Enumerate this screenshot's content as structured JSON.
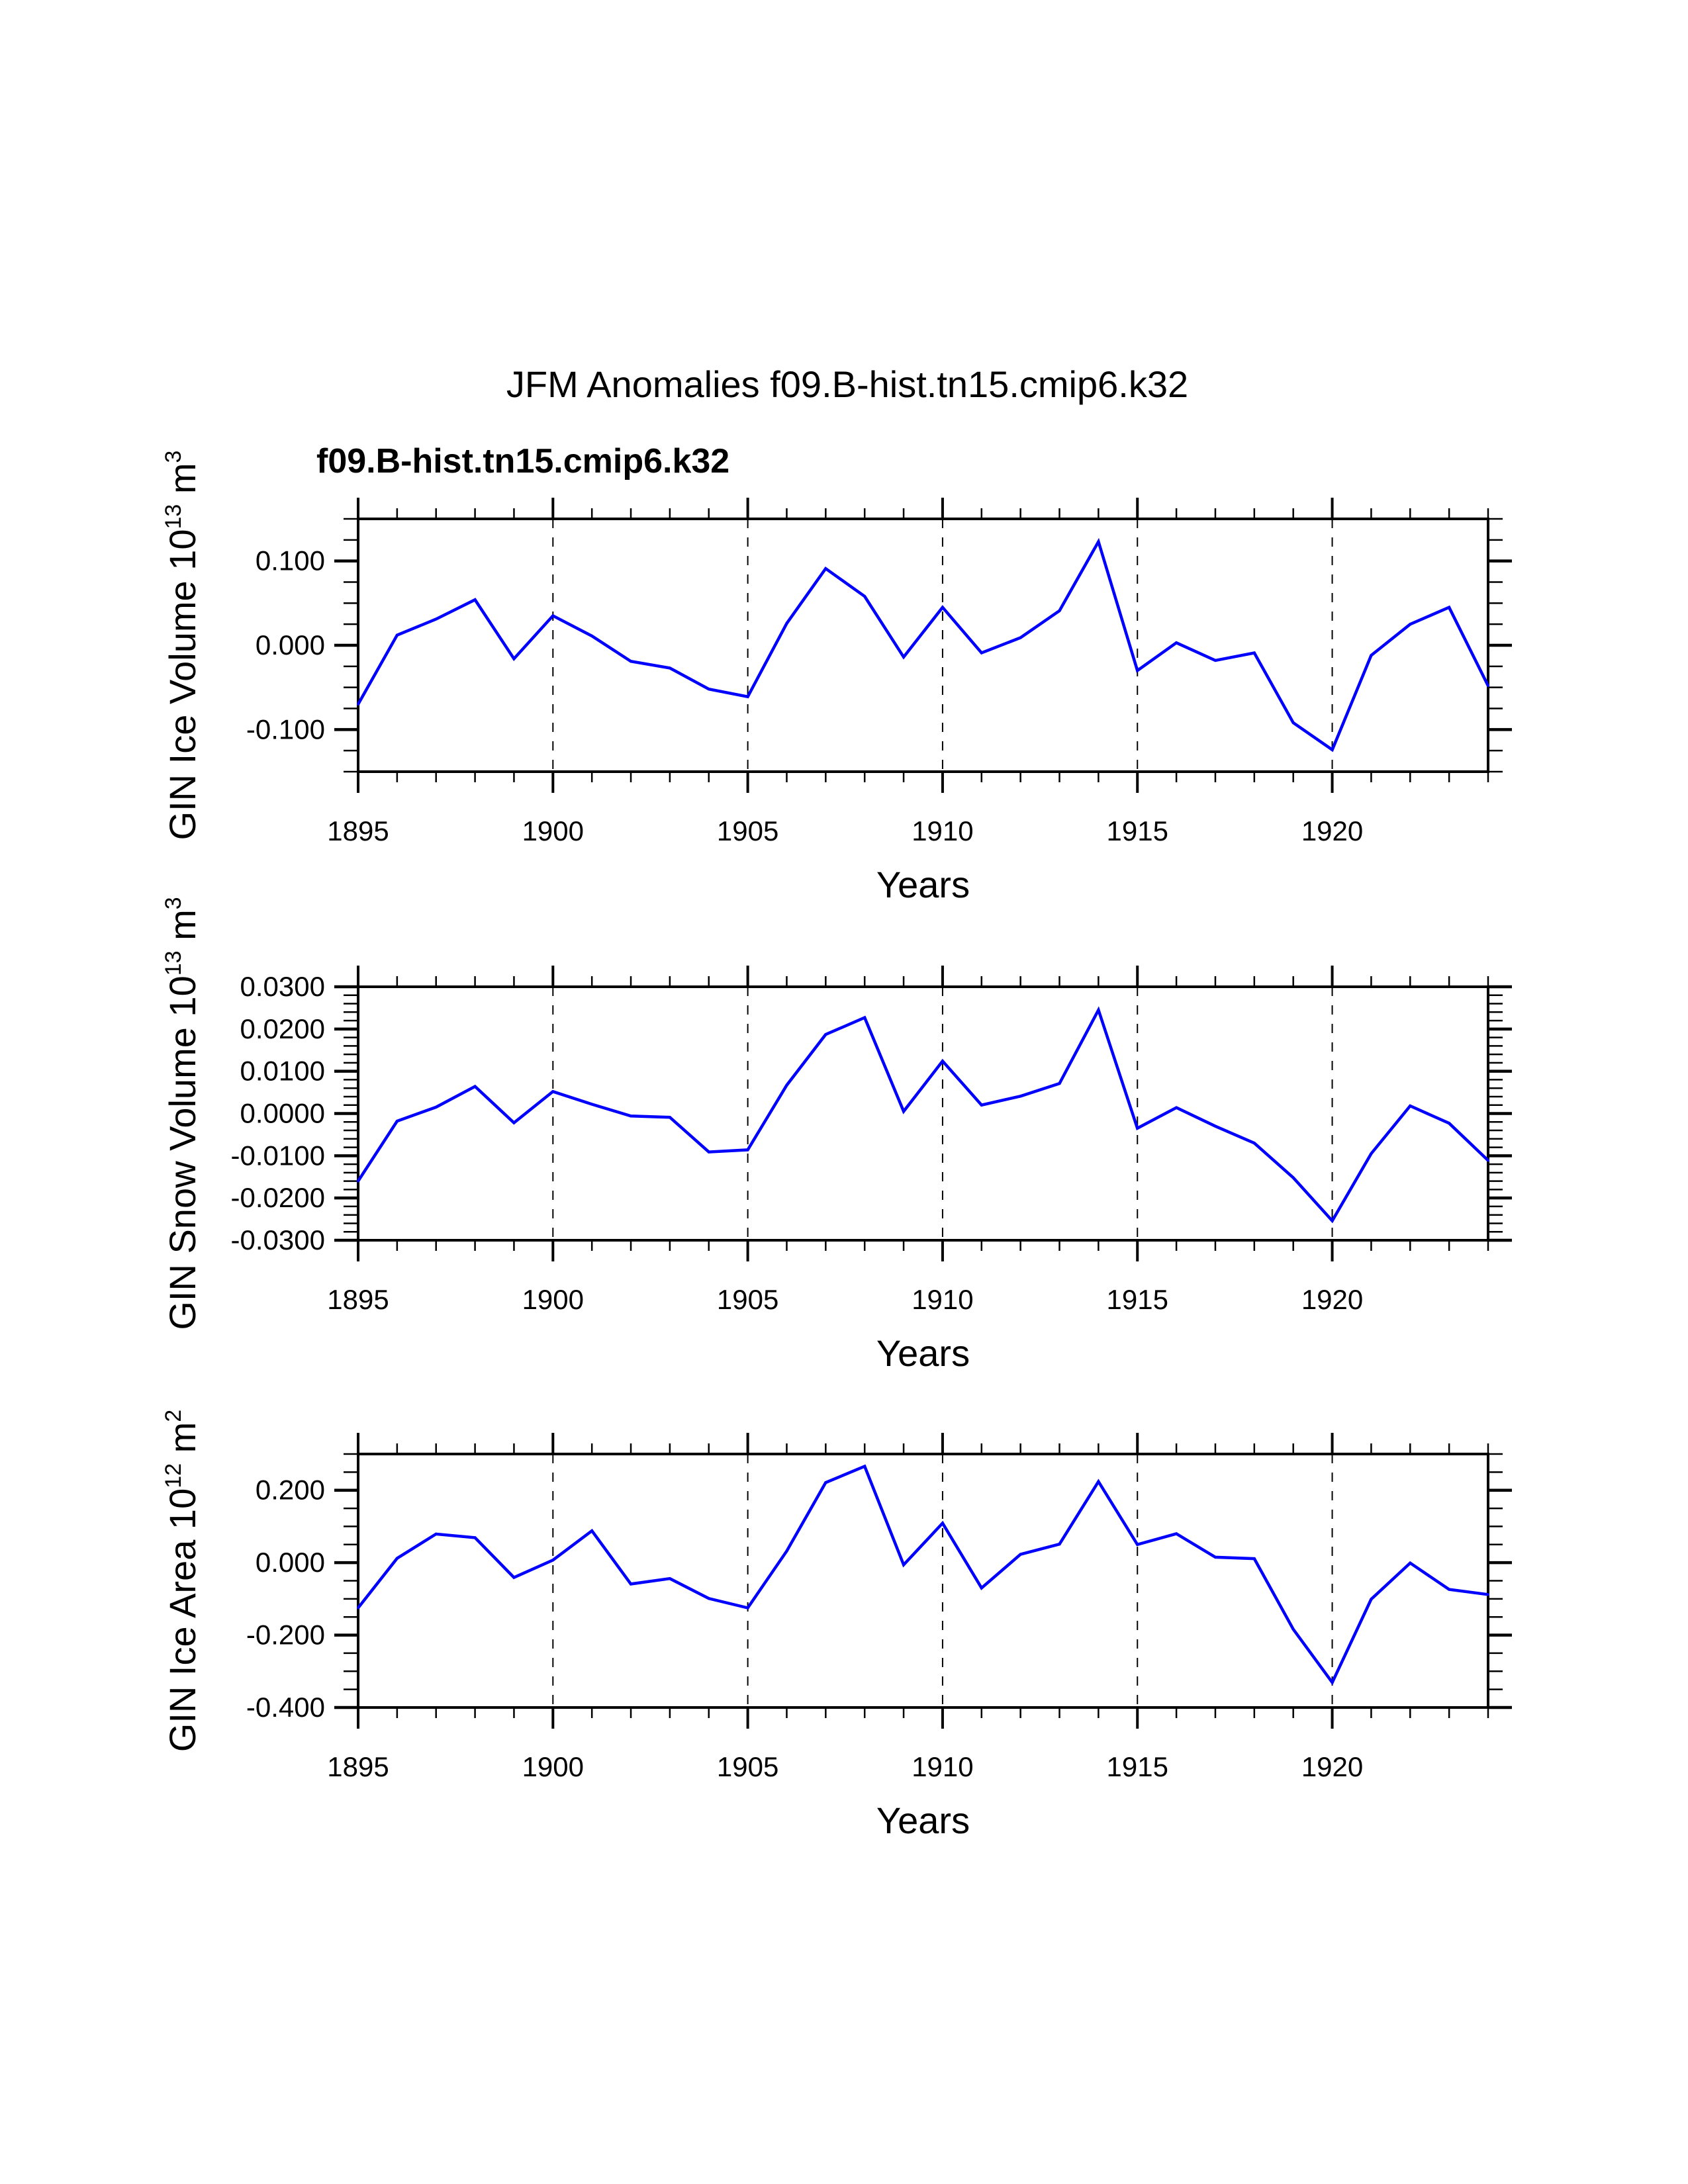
{
  "chart_data": {
    "title": "JFM Anomalies f09.B-hist.tn15.cmip6.k32",
    "subtitle": "f09.B-hist.tn15.cmip6.k32",
    "subtitle_color": "#0000ff",
    "line_color": "#0000ff",
    "grid": "dashed vertical lines at 1900, 1905, 1910, 1915, 1920",
    "panels": [
      {
        "type": "line",
        "ylabel": "GIN Ice Volume 10",
        "ylabel_exp": "13",
        "ylabel_unit": " m",
        "ylabel_unit_exp": "3",
        "xlabel": "Years",
        "xlim": [
          1895,
          1924
        ],
        "ylim": [
          -0.15,
          0.15
        ],
        "yticks": [
          0.1,
          0.0,
          -0.1
        ],
        "ytick_labels": [
          "0.100",
          "0.000",
          "-0.100"
        ],
        "yminor_step": 0.025,
        "x": [
          1895,
          1896,
          1897,
          1898,
          1899,
          1900,
          1901,
          1902,
          1903,
          1904,
          1905,
          1906,
          1907,
          1908,
          1909,
          1910,
          1911,
          1912,
          1913,
          1914,
          1915,
          1916,
          1917,
          1918,
          1919,
          1920,
          1921,
          1922,
          1923,
          1924
        ],
        "values": [
          -0.07,
          0.012,
          0.031,
          0.054,
          -0.016,
          0.035,
          0.011,
          -0.019,
          -0.027,
          -0.052,
          -0.061,
          0.026,
          0.091,
          0.058,
          -0.014,
          0.045,
          -0.009,
          0.009,
          0.041,
          0.123,
          -0.03,
          0.003,
          -0.018,
          -0.009,
          -0.092,
          -0.124,
          -0.012,
          0.025,
          0.045,
          -0.048
        ]
      },
      {
        "type": "line",
        "ylabel": "GIN Snow Volume 10",
        "ylabel_exp": "13",
        "ylabel_unit": " m",
        "ylabel_unit_exp": "3",
        "xlabel": "Years",
        "xlim": [
          1895,
          1924
        ],
        "ylim": [
          -0.03,
          0.03
        ],
        "yticks": [
          0.03,
          0.02,
          0.01,
          0.0,
          -0.01,
          -0.02,
          -0.03
        ],
        "ytick_labels": [
          "0.0300",
          "0.0200",
          "0.0100",
          "0.0000",
          "-0.0100",
          "-0.0200",
          "-0.0300"
        ],
        "yminor_step": 0.002,
        "x": [
          1895,
          1896,
          1897,
          1898,
          1899,
          1900,
          1901,
          1902,
          1903,
          1904,
          1905,
          1906,
          1907,
          1908,
          1909,
          1910,
          1911,
          1912,
          1913,
          1914,
          1915,
          1916,
          1917,
          1918,
          1919,
          1920,
          1921,
          1922,
          1923,
          1924
        ],
        "values": [
          -0.016,
          -0.0018,
          0.0015,
          0.0064,
          -0.0022,
          0.0052,
          0.0022,
          -0.0006,
          -0.0009,
          -0.0091,
          -0.0086,
          0.0067,
          0.0187,
          0.0227,
          0.0005,
          0.0124,
          0.002,
          0.0041,
          0.0071,
          0.0245,
          -0.0035,
          0.0014,
          -0.003,
          -0.007,
          -0.0152,
          -0.0254,
          -0.0095,
          0.0018,
          -0.0023,
          -0.0111
        ]
      },
      {
        "type": "line",
        "ylabel": "GIN Ice Area 10",
        "ylabel_exp": "12",
        "ylabel_unit": " m",
        "ylabel_unit_exp": "2",
        "xlabel": "Years",
        "xlim": [
          1895,
          1924
        ],
        "ylim": [
          -0.4,
          0.3
        ],
        "yticks": [
          0.2,
          0.0,
          -0.2,
          -0.4
        ],
        "ytick_labels": [
          "0.200",
          "0.000",
          "-0.200",
          "-0.400"
        ],
        "yminor_step": 0.05,
        "x": [
          1895,
          1896,
          1897,
          1898,
          1899,
          1900,
          1901,
          1902,
          1903,
          1904,
          1905,
          1906,
          1907,
          1908,
          1909,
          1910,
          1911,
          1912,
          1913,
          1914,
          1915,
          1916,
          1917,
          1918,
          1919,
          1920,
          1921,
          1922,
          1923,
          1924
        ],
        "values": [
          -0.125,
          0.012,
          0.079,
          0.069,
          -0.041,
          0.007,
          0.088,
          -0.059,
          -0.044,
          -0.099,
          -0.125,
          0.032,
          0.221,
          0.266,
          -0.006,
          0.109,
          -0.07,
          0.023,
          0.051,
          0.224,
          0.05,
          0.08,
          0.015,
          0.011,
          -0.184,
          -0.331,
          -0.101,
          -0.001,
          -0.074,
          -0.088
        ]
      }
    ],
    "xticks": [
      1895,
      1900,
      1905,
      1910,
      1915,
      1920
    ],
    "xtick_labels": [
      "1895",
      "1900",
      "1905",
      "1910",
      "1915",
      "1920"
    ],
    "dashed_years": [
      1900,
      1905,
      1910,
      1915,
      1920
    ]
  }
}
